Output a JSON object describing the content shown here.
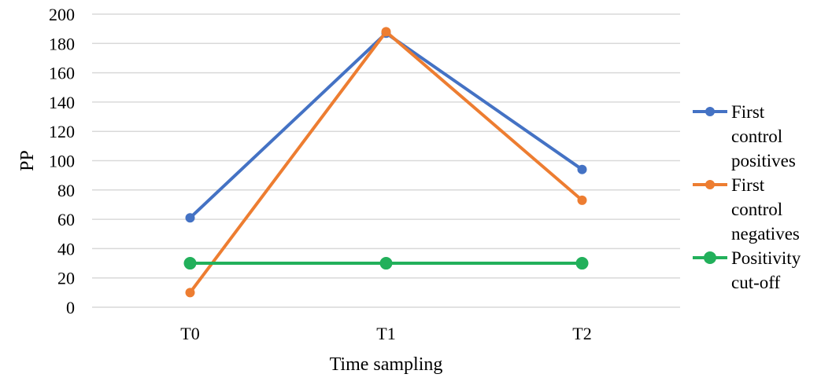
{
  "chart_data": {
    "type": "line",
    "categories": [
      "T0",
      "T1",
      "T2"
    ],
    "series": [
      {
        "name": "First control positives",
        "legend_lines": [
          "First",
          "control",
          "positives"
        ],
        "values": [
          61,
          187,
          94
        ],
        "color": "#4472c4",
        "marker": "circle-small"
      },
      {
        "name": "First control negatives",
        "legend_lines": [
          "First",
          "control",
          "negatives"
        ],
        "values": [
          10,
          188,
          73
        ],
        "color": "#ed7d31",
        "marker": "circle-small"
      },
      {
        "name": "Positivity cut-off",
        "legend_lines": [
          "Positivity",
          "cut-off"
        ],
        "values": [
          30,
          30,
          30
        ],
        "color": "#22b05b",
        "marker": "circle-large"
      }
    ],
    "title": "",
    "xlabel": "Time sampling",
    "ylabel": "PP",
    "ylim": [
      0,
      200
    ],
    "ytick_step": 20,
    "yticks": [
      "0",
      "20",
      "40",
      "60",
      "80",
      "100",
      "120",
      "140",
      "160",
      "180",
      "200"
    ],
    "grid": true,
    "legend_position": "right"
  }
}
